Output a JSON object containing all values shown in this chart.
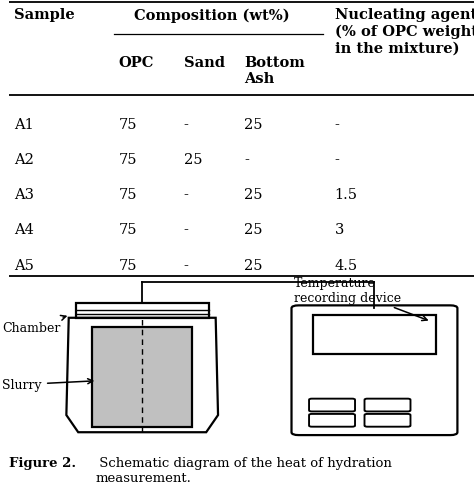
{
  "table_headers_row1": [
    "Sample",
    "Composition (wt%)",
    "Nucleating agent\n(% of OPC weight\nin the mixture)"
  ],
  "table_headers_row2": [
    "OPC",
    "Sand",
    "Bottom\nAsh"
  ],
  "table_rows": [
    [
      "A1",
      "75",
      "-",
      "25",
      "-"
    ],
    [
      "A2",
      "75",
      "25",
      "-",
      "-"
    ],
    [
      "A3",
      "75",
      "-",
      "25",
      "1.5"
    ],
    [
      "A4",
      "75",
      "-",
      "25",
      "3"
    ],
    [
      "A5",
      "75",
      "-",
      "25",
      "4.5"
    ]
  ],
  "figure_caption_bold": "Figure 2.",
  "figure_caption_normal": " Schematic diagram of the heat of hydration\nmeasurement.",
  "label_chamber": "Chamber",
  "label_slurry": "Slurry",
  "label_temp": "Temperature\nrecording device",
  "bg_color": "#ffffff",
  "line_color": "#000000",
  "slurry_fill": "#c0c0c0"
}
